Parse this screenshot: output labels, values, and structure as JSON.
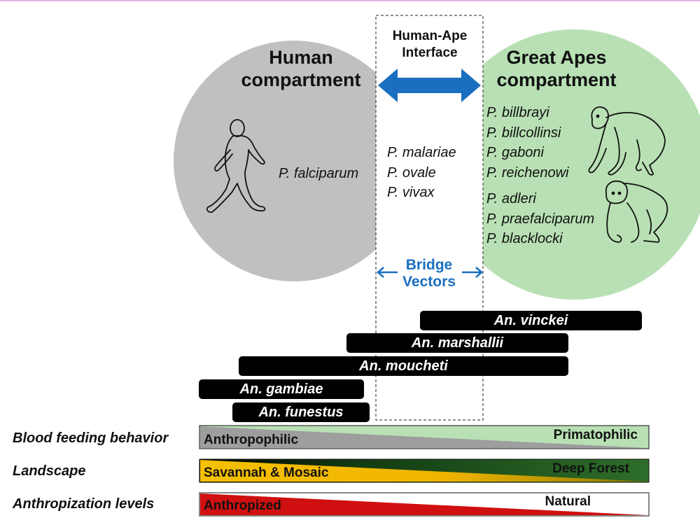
{
  "human_compartment": {
    "title_line1": "Human",
    "title_line2": "compartment",
    "species": "P. falciparum"
  },
  "interface": {
    "title_line1": "Human-Ape",
    "title_line2": "Interface",
    "species": [
      "P. malariae",
      "P. ovale",
      "P. vivax"
    ]
  },
  "ape_compartment": {
    "title_line1": "Great Apes",
    "title_line2": "compartment",
    "chimp_species": [
      "P. billbrayi",
      "P. billcollinsi",
      "P. gaboni",
      "P. reichenowi"
    ],
    "gorilla_species": [
      "P. adleri",
      "P. praefalciparum",
      "P. blacklocki"
    ]
  },
  "bridge": {
    "line1": "Bridge",
    "line2": "Vectors"
  },
  "vectors": [
    "An. vinckei",
    "An. marshallii",
    "An. moucheti",
    "An. gambiae",
    "An. funestus"
  ],
  "gradients": [
    {
      "label": "Blood feeding behavior",
      "left": "Anthropophilic",
      "right": "Primatophilic"
    },
    {
      "label": "Landscape",
      "left": "Savannah & Mosaic",
      "right": "Deep Forest"
    },
    {
      "label": "Anthropization levels",
      "left": "Anthropized",
      "right": "Natural"
    }
  ],
  "colors": {
    "human": "#c0c0c0",
    "apes": "#b8e0b4",
    "arrow": "#1a6fc0",
    "anthropophilic": "#9e9e9e",
    "savannah": "#f5c000",
    "forest": "#1e5a1e",
    "anthropized": "#d01010"
  }
}
